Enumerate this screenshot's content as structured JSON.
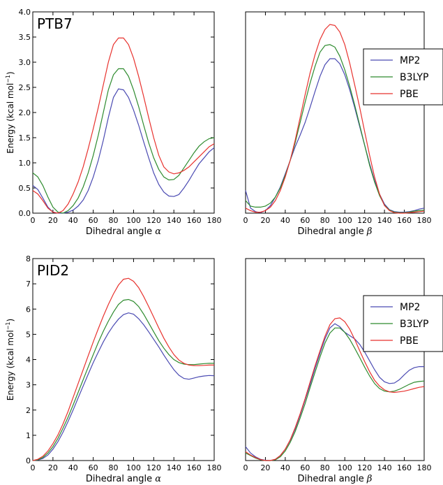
{
  "figure": {
    "ylabel_prefix": "Energy (kcal mol",
    "ylabel_sup": "−1",
    "ylabel_suffix": ")",
    "colors": {
      "MP2": "#4a4ab2",
      "B3LYP": "#2e8b2e",
      "PBE": "#e8322e"
    }
  },
  "chart_data": [
    {
      "type": "line",
      "title": "PTB7",
      "xlabel": "Dihedral angle",
      "xlabel_symbol": "α",
      "ylabel": "Energy (kcal mol−1)",
      "xlim": [
        0,
        180
      ],
      "ylim": [
        0,
        4.0
      ],
      "xticks": [
        0,
        20,
        40,
        60,
        80,
        100,
        120,
        140,
        160,
        180
      ],
      "yticks": [
        "0.0",
        "0.5",
        "1.0",
        "1.5",
        "2.0",
        "2.5",
        "3.0",
        "3.5",
        "4.0"
      ],
      "legend": null,
      "x": [
        0,
        5,
        10,
        15,
        20,
        25,
        30,
        35,
        40,
        45,
        50,
        55,
        60,
        65,
        70,
        75,
        80,
        85,
        90,
        95,
        100,
        105,
        110,
        115,
        120,
        125,
        130,
        135,
        140,
        145,
        150,
        155,
        160,
        165,
        170,
        175,
        180
      ],
      "series": [
        {
          "name": "MP2",
          "values": [
            0.55,
            0.47,
            0.3,
            0.12,
            0.02,
            0.0,
            0.0,
            0.02,
            0.06,
            0.14,
            0.26,
            0.45,
            0.72,
            1.05,
            1.45,
            1.9,
            2.3,
            2.47,
            2.45,
            2.3,
            2.05,
            1.75,
            1.42,
            1.1,
            0.8,
            0.57,
            0.42,
            0.34,
            0.33,
            0.37,
            0.5,
            0.65,
            0.82,
            0.98,
            1.1,
            1.22,
            1.3
          ]
        },
        {
          "name": "B3LYP",
          "values": [
            0.8,
            0.72,
            0.55,
            0.32,
            0.12,
            0.02,
            0.0,
            0.05,
            0.15,
            0.3,
            0.52,
            0.8,
            1.15,
            1.55,
            2.0,
            2.45,
            2.75,
            2.87,
            2.87,
            2.72,
            2.45,
            2.12,
            1.75,
            1.4,
            1.1,
            0.87,
            0.72,
            0.66,
            0.67,
            0.75,
            0.9,
            1.05,
            1.2,
            1.33,
            1.42,
            1.48,
            1.5
          ]
        },
        {
          "name": "PBE",
          "values": [
            0.45,
            0.38,
            0.25,
            0.1,
            0.02,
            0.0,
            0.05,
            0.18,
            0.38,
            0.62,
            0.92,
            1.28,
            1.68,
            2.1,
            2.55,
            3.0,
            3.35,
            3.48,
            3.48,
            3.35,
            3.08,
            2.72,
            2.32,
            1.9,
            1.5,
            1.15,
            0.92,
            0.82,
            0.78,
            0.8,
            0.85,
            0.92,
            1.02,
            1.12,
            1.22,
            1.32,
            1.38
          ]
        }
      ]
    },
    {
      "type": "line",
      "title": "",
      "xlabel": "Dihedral angle",
      "xlabel_symbol": "β",
      "xlim": [
        0,
        180
      ],
      "ylim": [
        0,
        4.0
      ],
      "xticks": [
        0,
        20,
        40,
        60,
        80,
        100,
        120,
        140,
        160,
        180
      ],
      "yticks": [],
      "legend": "right",
      "x": [
        0,
        5,
        10,
        15,
        20,
        25,
        30,
        35,
        40,
        45,
        50,
        55,
        60,
        65,
        70,
        75,
        80,
        85,
        90,
        95,
        100,
        105,
        110,
        115,
        120,
        125,
        130,
        135,
        140,
        145,
        150,
        155,
        160,
        165,
        170,
        175,
        180
      ],
      "series": [
        {
          "name": "MP2",
          "values": [
            0.45,
            0.1,
            0.03,
            0.01,
            0.05,
            0.15,
            0.32,
            0.52,
            0.78,
            1.05,
            1.32,
            1.55,
            1.8,
            2.1,
            2.42,
            2.72,
            2.95,
            3.07,
            3.07,
            2.97,
            2.75,
            2.45,
            2.1,
            1.72,
            1.35,
            0.98,
            0.65,
            0.38,
            0.18,
            0.07,
            0.03,
            0.02,
            0.02,
            0.03,
            0.05,
            0.08,
            0.1
          ]
        },
        {
          "name": "B3LYP",
          "values": [
            0.25,
            0.14,
            0.12,
            0.12,
            0.14,
            0.2,
            0.32,
            0.5,
            0.75,
            1.05,
            1.4,
            1.8,
            2.2,
            2.58,
            2.92,
            3.2,
            3.33,
            3.35,
            3.3,
            3.12,
            2.85,
            2.52,
            2.15,
            1.75,
            1.35,
            0.95,
            0.62,
            0.35,
            0.16,
            0.06,
            0.02,
            0.01,
            0.01,
            0.02,
            0.04,
            0.05,
            0.06
          ]
        },
        {
          "name": "PBE",
          "values": [
            0.1,
            0.05,
            0.02,
            0.02,
            0.05,
            0.12,
            0.25,
            0.45,
            0.72,
            1.05,
            1.45,
            1.9,
            2.35,
            2.78,
            3.15,
            3.45,
            3.65,
            3.75,
            3.73,
            3.6,
            3.35,
            2.98,
            2.55,
            2.1,
            1.62,
            1.15,
            0.72,
            0.38,
            0.15,
            0.05,
            0.01,
            0.0,
            0.0,
            0.01,
            0.02,
            0.03,
            0.04
          ]
        }
      ]
    },
    {
      "type": "line",
      "title": "PID2",
      "xlabel": "Dihedral angle",
      "xlabel_symbol": "α",
      "ylabel": "Energy (kcal mol−1)",
      "xlim": [
        0,
        180
      ],
      "ylim": [
        0,
        8
      ],
      "xticks": [
        0,
        20,
        40,
        60,
        80,
        100,
        120,
        140,
        160,
        180
      ],
      "yticks": [
        "0",
        "1",
        "2",
        "3",
        "4",
        "5",
        "6",
        "7",
        "8"
      ],
      "legend": null,
      "x": [
        0,
        5,
        10,
        15,
        20,
        25,
        30,
        35,
        40,
        45,
        50,
        55,
        60,
        65,
        70,
        75,
        80,
        85,
        90,
        95,
        100,
        105,
        110,
        115,
        120,
        125,
        130,
        135,
        140,
        145,
        150,
        155,
        160,
        165,
        170,
        175,
        180
      ],
      "series": [
        {
          "name": "MP2",
          "values": [
            0.0,
            0.02,
            0.08,
            0.22,
            0.45,
            0.75,
            1.12,
            1.55,
            2.0,
            2.48,
            2.95,
            3.42,
            3.88,
            4.3,
            4.7,
            5.05,
            5.35,
            5.6,
            5.78,
            5.85,
            5.8,
            5.62,
            5.38,
            5.1,
            4.8,
            4.5,
            4.18,
            3.88,
            3.6,
            3.38,
            3.25,
            3.22,
            3.27,
            3.32,
            3.35,
            3.37,
            3.36
          ]
        },
        {
          "name": "B3LYP",
          "values": [
            0.0,
            0.03,
            0.12,
            0.3,
            0.55,
            0.88,
            1.28,
            1.72,
            2.2,
            2.7,
            3.2,
            3.7,
            4.2,
            4.68,
            5.12,
            5.52,
            5.88,
            6.18,
            6.35,
            6.38,
            6.3,
            6.1,
            5.8,
            5.45,
            5.1,
            4.75,
            4.45,
            4.2,
            4.0,
            3.88,
            3.82,
            3.8,
            3.8,
            3.82,
            3.84,
            3.85,
            3.85
          ]
        },
        {
          "name": "PBE",
          "values": [
            0.0,
            0.05,
            0.17,
            0.38,
            0.67,
            1.02,
            1.45,
            1.95,
            2.5,
            3.05,
            3.6,
            4.15,
            4.7,
            5.22,
            5.72,
            6.18,
            6.6,
            6.95,
            7.18,
            7.22,
            7.1,
            6.85,
            6.5,
            6.1,
            5.68,
            5.25,
            4.85,
            4.5,
            4.2,
            3.98,
            3.85,
            3.78,
            3.76,
            3.76,
            3.77,
            3.78,
            3.78
          ]
        }
      ]
    },
    {
      "type": "line",
      "title": "",
      "xlabel": "Dihedral angle",
      "xlabel_symbol": "β",
      "xlim": [
        0,
        180
      ],
      "ylim": [
        0,
        8
      ],
      "xticks": [
        0,
        20,
        40,
        60,
        80,
        100,
        120,
        140,
        160,
        180
      ],
      "yticks": [],
      "legend": "top-right",
      "x": [
        0,
        5,
        10,
        15,
        20,
        25,
        30,
        35,
        40,
        45,
        50,
        55,
        60,
        65,
        70,
        75,
        80,
        85,
        90,
        95,
        100,
        105,
        110,
        115,
        120,
        125,
        130,
        135,
        140,
        145,
        150,
        155,
        160,
        165,
        170,
        175,
        180
      ],
      "series": [
        {
          "name": "MP2",
          "values": [
            0.55,
            0.3,
            0.15,
            0.05,
            0.01,
            0.0,
            0.05,
            0.2,
            0.45,
            0.8,
            1.25,
            1.8,
            2.4,
            3.0,
            3.65,
            4.25,
            4.82,
            5.25,
            5.42,
            5.3,
            5.08,
            4.95,
            4.82,
            4.6,
            4.3,
            3.95,
            3.6,
            3.3,
            3.12,
            3.05,
            3.07,
            3.2,
            3.4,
            3.58,
            3.68,
            3.72,
            3.72
          ]
        },
        {
          "name": "B3LYP",
          "values": [
            0.3,
            0.2,
            0.1,
            0.03,
            0.0,
            0.0,
            0.03,
            0.15,
            0.38,
            0.72,
            1.15,
            1.68,
            2.25,
            2.88,
            3.5,
            4.1,
            4.65,
            5.05,
            5.25,
            5.25,
            5.08,
            4.8,
            4.45,
            4.08,
            3.7,
            3.35,
            3.05,
            2.85,
            2.75,
            2.72,
            2.75,
            2.82,
            2.92,
            3.02,
            3.1,
            3.13,
            3.15
          ]
        },
        {
          "name": "PBE",
          "values": [
            0.35,
            0.22,
            0.12,
            0.04,
            0.0,
            0.0,
            0.05,
            0.2,
            0.45,
            0.82,
            1.3,
            1.85,
            2.45,
            3.1,
            3.75,
            4.35,
            4.92,
            5.38,
            5.62,
            5.65,
            5.5,
            5.2,
            4.8,
            4.35,
            3.92,
            3.52,
            3.18,
            2.95,
            2.8,
            2.72,
            2.7,
            2.72,
            2.75,
            2.8,
            2.85,
            2.9,
            2.93
          ]
        }
      ]
    }
  ]
}
